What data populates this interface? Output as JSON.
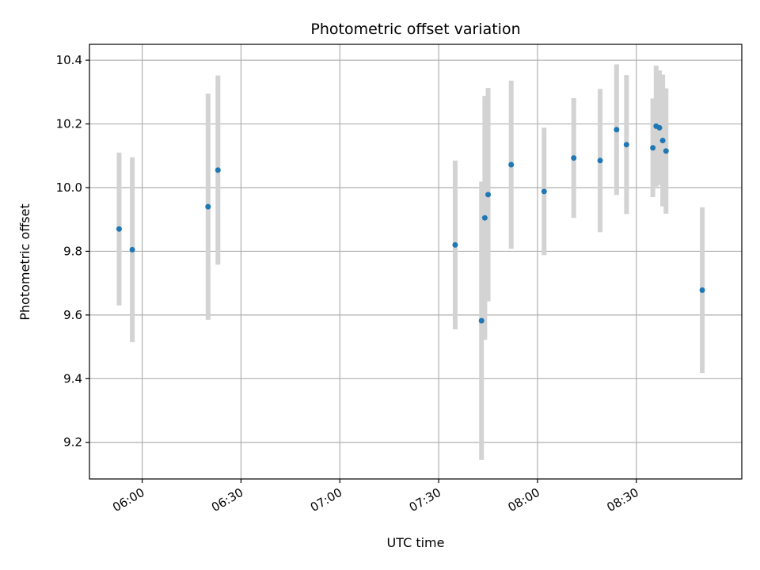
{
  "chart_data": {
    "type": "scatter",
    "title": "Photometric offset variation",
    "xlabel": "UTC time",
    "ylabel": "Photometric offset",
    "grid": true,
    "xlim": [
      "05:44",
      "09:02"
    ],
    "ylim": [
      9.085,
      10.45
    ],
    "x_ticks": [
      "06:00",
      "06:30",
      "07:00",
      "07:30",
      "08:00",
      "08:30"
    ],
    "y_ticks": [
      9.2,
      9.4,
      9.6,
      9.8,
      10.0,
      10.2,
      10.4
    ],
    "y_tick_labels": [
      "9.2",
      "9.4",
      "9.6",
      "9.8",
      "10.0",
      "10.2",
      "10.4"
    ],
    "series": [
      {
        "marker_color": "#1f77b4",
        "errorbar_color": "#d3d3d3",
        "points": [
          {
            "x": "05:53",
            "y": 9.87,
            "err": 0.24
          },
          {
            "x": "05:57",
            "y": 9.805,
            "err": 0.29
          },
          {
            "x": "06:20",
            "y": 9.94,
            "err": 0.355
          },
          {
            "x": "06:23",
            "y": 10.055,
            "err": 0.297
          },
          {
            "x": "07:35",
            "y": 9.82,
            "err": 0.265
          },
          {
            "x": "07:43",
            "y": 9.582,
            "err": 0.437
          },
          {
            "x": "07:44",
            "y": 9.905,
            "err": 0.383
          },
          {
            "x": "07:45",
            "y": 9.978,
            "err": 0.335
          },
          {
            "x": "07:52",
            "y": 10.072,
            "err": 0.264
          },
          {
            "x": "08:02",
            "y": 9.988,
            "err": 0.2
          },
          {
            "x": "08:11",
            "y": 10.093,
            "err": 0.188
          },
          {
            "x": "08:19",
            "y": 10.085,
            "err": 0.225
          },
          {
            "x": "08:24",
            "y": 10.182,
            "err": 0.205
          },
          {
            "x": "08:27",
            "y": 10.135,
            "err": 0.218
          },
          {
            "x": "08:35",
            "y": 10.125,
            "err": 0.155
          },
          {
            "x": "08:36",
            "y": 10.193,
            "err": 0.19
          },
          {
            "x": "08:37",
            "y": 10.188,
            "err": 0.18
          },
          {
            "x": "08:38",
            "y": 10.148,
            "err": 0.207
          },
          {
            "x": "08:39",
            "y": 10.115,
            "err": 0.197
          },
          {
            "x": "08:50",
            "y": 9.678,
            "err": 0.26
          }
        ]
      }
    ]
  }
}
